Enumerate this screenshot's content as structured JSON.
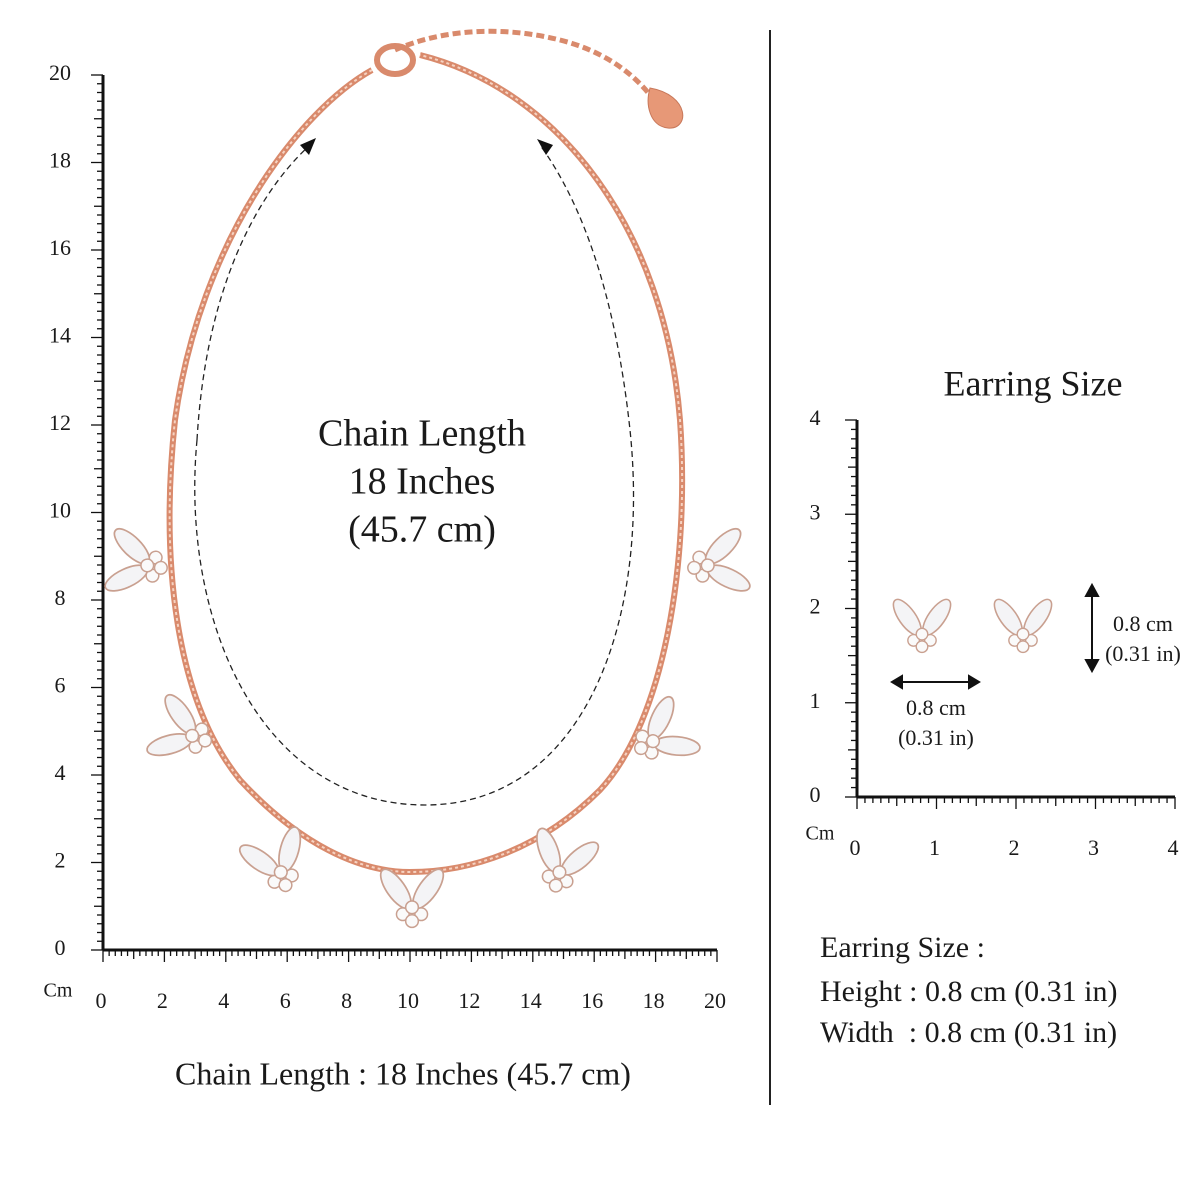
{
  "necklace": {
    "center_text": [
      "Chain Length",
      "18 Inches",
      "(45.7 cm)"
    ],
    "caption": "Chain Length : 18 Inches (45.7 cm)",
    "ruler": {
      "unit": "Cm",
      "y_labels": [
        0,
        2,
        4,
        6,
        8,
        10,
        12,
        14,
        16,
        18,
        20
      ],
      "x_labels": [
        0,
        2,
        4,
        6,
        8,
        10,
        12,
        14,
        16,
        18,
        20
      ]
    }
  },
  "earring": {
    "title": "Earring Size",
    "height_label": [
      "0.8 cm",
      "(0.31 in)"
    ],
    "width_label": [
      "0.8 cm",
      "(0.31 in)"
    ],
    "ruler": {
      "unit": "Cm",
      "y_labels": [
        0,
        1,
        2,
        3,
        4
      ],
      "x_labels": [
        0,
        1,
        2,
        3,
        4
      ]
    },
    "spec": [
      "Earring Size :",
      "Height : 0.8 cm (0.31 in)",
      "Width  : 0.8 cm (0.31 in)"
    ]
  }
}
